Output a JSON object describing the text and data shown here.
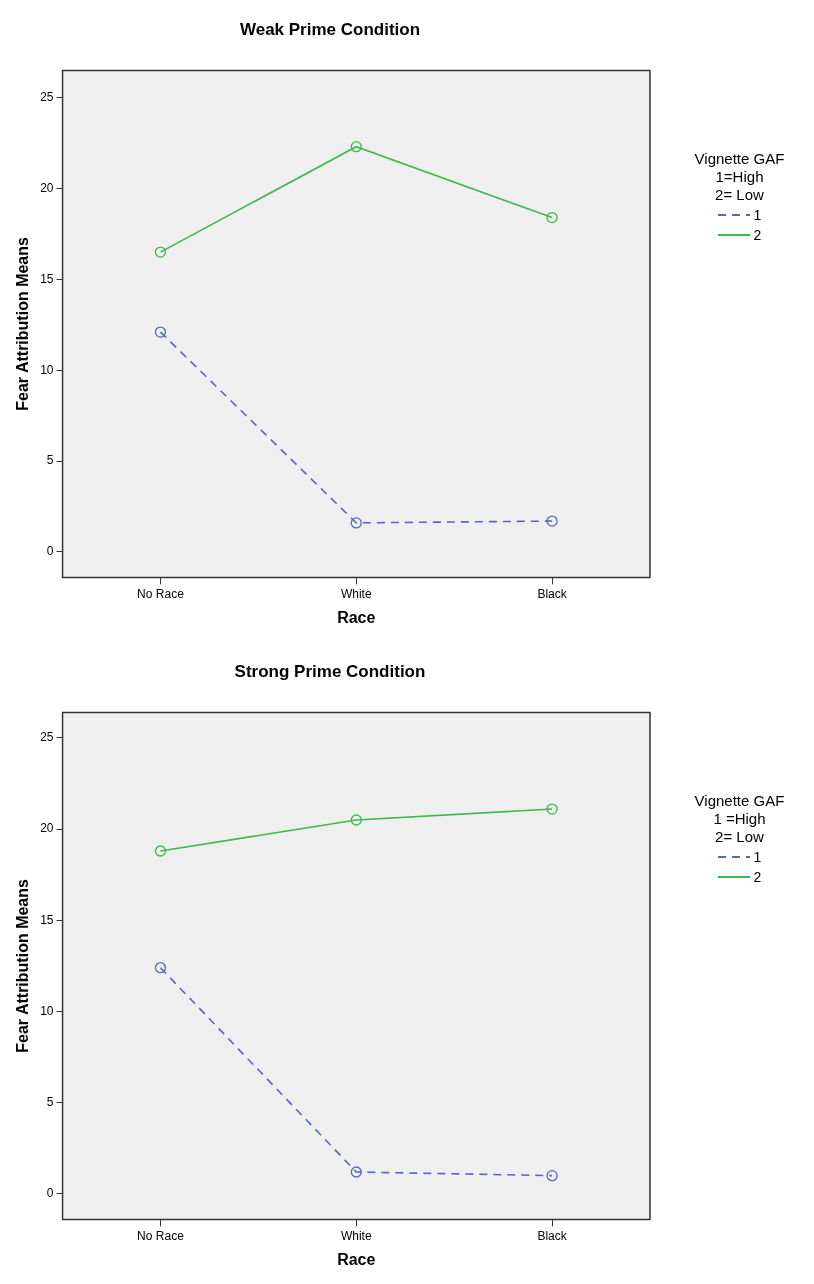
{
  "chart_data": [
    {
      "type": "line",
      "title": "Weak Prime Condition",
      "xlabel": "Race",
      "ylabel": "Fear Attribution Means",
      "legend_title": "Vignette GAF\n1=High\n2= Low",
      "legend": "right",
      "marker": "circle",
      "grid": false,
      "categories": [
        "No Race",
        "White",
        "Black"
      ],
      "ylim": [
        -1.4,
        26.5
      ],
      "yticks": [
        0,
        5,
        10,
        15,
        20,
        25
      ],
      "series": [
        {
          "name": "1",
          "color": "#5468c2",
          "line_style": "dashed",
          "values": [
            12.1,
            1.6,
            1.7
          ]
        },
        {
          "name": "2",
          "color": "#3db84b",
          "line_style": "solid",
          "values": [
            16.5,
            22.3,
            18.4
          ]
        }
      ]
    },
    {
      "type": "line",
      "title": "Strong Prime Condition",
      "xlabel": "Race",
      "ylabel": "Fear Attribution Means",
      "legend_title": "Vignette GAF\n1 =High\n2= Low",
      "legend": "right",
      "marker": "circle",
      "grid": false,
      "categories": [
        "No Race",
        "White",
        "Black"
      ],
      "ylim": [
        -1.4,
        26.4
      ],
      "yticks": [
        0,
        5,
        10,
        15,
        20,
        25
      ],
      "series": [
        {
          "name": "1",
          "color": "#5468c2",
          "line_style": "dashed",
          "values": [
            12.4,
            1.2,
            1.0
          ]
        },
        {
          "name": "2",
          "color": "#3db84b",
          "line_style": "solid",
          "values": [
            18.8,
            20.5,
            21.1
          ]
        }
      ]
    }
  ]
}
